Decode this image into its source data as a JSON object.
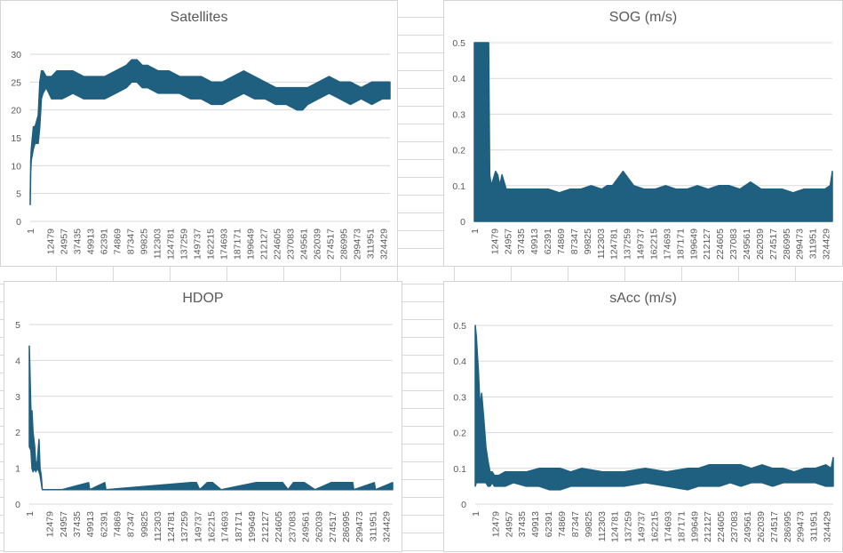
{
  "chart_data": [
    {
      "type": "line",
      "title": "Satellites",
      "xlabel": "",
      "ylabel": "",
      "ylim": [
        0,
        30
      ],
      "yticks": [
        "0",
        "5",
        "10",
        "15",
        "20",
        "25",
        "30"
      ],
      "grid": true,
      "color": "#1f5f7f",
      "categories": [
        "1",
        "12479",
        "24957",
        "37435",
        "49913",
        "62391",
        "74869",
        "87347",
        "99825",
        "112303",
        "124781",
        "137259",
        "149737",
        "162215",
        "174693",
        "187171",
        "199649",
        "212127",
        "224605",
        "237083",
        "249561",
        "262039",
        "274517",
        "286995",
        "299473",
        "311951",
        "324429"
      ],
      "x": [
        1,
        500,
        1000,
        2000,
        3000,
        4500,
        6000,
        7500,
        9000,
        10500,
        12000,
        15000,
        20000,
        25000,
        30000,
        40000,
        50000,
        60000,
        70000,
        80000,
        90000,
        95000,
        100000,
        105000,
        110000,
        120000,
        130000,
        140000,
        150000,
        160000,
        170000,
        180000,
        190000,
        200000,
        210000,
        220000,
        230000,
        240000,
        250000,
        255000,
        260000,
        270000,
        280000,
        290000,
        300000,
        310000,
        320000,
        330000,
        337000
      ],
      "series": [
        {
          "name": "",
          "max": [
            4,
            11,
            13,
            15,
            17,
            17,
            18,
            19,
            25,
            27,
            27,
            26,
            26,
            27,
            27,
            27,
            26,
            26,
            26,
            27,
            28,
            29,
            29,
            28,
            28,
            27,
            27,
            26,
            26,
            26,
            25,
            25,
            26,
            27,
            26,
            25,
            24,
            24,
            24,
            24,
            24,
            25,
            26,
            25,
            25,
            24,
            25,
            25,
            25
          ],
          "min": [
            3,
            9,
            11,
            12,
            13,
            14,
            14,
            14,
            17,
            22,
            23,
            24,
            22,
            22,
            22,
            23,
            22,
            22,
            22,
            23,
            24,
            25,
            25,
            24,
            24,
            23,
            23,
            23,
            22,
            22,
            21,
            21,
            22,
            23,
            22,
            22,
            21,
            21,
            20,
            20,
            21,
            22,
            23,
            22,
            21,
            22,
            21,
            22,
            22
          ]
        }
      ]
    },
    {
      "type": "line",
      "title": "SOG (m/s)",
      "xlabel": "",
      "ylabel": "",
      "ylim": [
        0,
        0.5
      ],
      "yticks": [
        "0",
        "0.1",
        "0.2",
        "0.3",
        "0.4",
        "0.5"
      ],
      "grid": true,
      "color": "#1f5f7f",
      "categories": [
        "1",
        "12479",
        "24957",
        "37435",
        "49913",
        "62391",
        "74869",
        "87347",
        "99825",
        "112303",
        "124781",
        "137259",
        "149737",
        "162215",
        "174693",
        "187171",
        "199649",
        "212127",
        "224605",
        "237083",
        "249561",
        "262039",
        "274517",
        "286995",
        "299473",
        "311951",
        "324429"
      ],
      "x": [
        1,
        13500,
        14500,
        16000,
        18000,
        20000,
        22000,
        24000,
        26000,
        30000,
        40000,
        50000,
        60000,
        70000,
        80000,
        90000,
        100000,
        110000,
        120000,
        125000,
        130000,
        140000,
        150000,
        160000,
        170000,
        180000,
        190000,
        200000,
        210000,
        220000,
        230000,
        240000,
        250000,
        260000,
        270000,
        280000,
        290000,
        300000,
        310000,
        320000,
        330000,
        335000,
        337000
      ],
      "series": [
        {
          "name": "",
          "max": [
            0.5,
            0.5,
            0.13,
            0.1,
            0.12,
            0.14,
            0.13,
            0.1,
            0.13,
            0.09,
            0.09,
            0.09,
            0.09,
            0.09,
            0.08,
            0.09,
            0.09,
            0.1,
            0.09,
            0.1,
            0.1,
            0.14,
            0.1,
            0.09,
            0.09,
            0.1,
            0.09,
            0.09,
            0.1,
            0.09,
            0.1,
            0.1,
            0.09,
            0.11,
            0.09,
            0.09,
            0.09,
            0.08,
            0.09,
            0.09,
            0.09,
            0.1,
            0.14
          ],
          "min": [
            0,
            0,
            0,
            0,
            0,
            0,
            0,
            0,
            0,
            0,
            0,
            0,
            0,
            0,
            0,
            0,
            0,
            0,
            0,
            0,
            0,
            0,
            0,
            0,
            0,
            0,
            0,
            0,
            0,
            0,
            0,
            0,
            0,
            0,
            0,
            0,
            0,
            0,
            0,
            0,
            0,
            0,
            0
          ]
        }
      ]
    },
    {
      "type": "line",
      "title": "HDOP",
      "xlabel": "",
      "ylabel": "",
      "ylim": [
        0,
        5
      ],
      "yticks": [
        "0",
        "1",
        "2",
        "3",
        "4",
        "5"
      ],
      "grid": true,
      "color": "#1f5f7f",
      "categories": [
        "1",
        "12479",
        "24957",
        "37435",
        "49913",
        "62391",
        "74869",
        "87347",
        "99825",
        "112303",
        "124781",
        "137259",
        "149737",
        "162215",
        "174693",
        "187171",
        "199649",
        "212127",
        "224605",
        "237083",
        "249561",
        "262039",
        "274517",
        "286995",
        "299473",
        "311951",
        "324429"
      ],
      "x": [
        1,
        1500,
        2500,
        3500,
        5000,
        6000,
        7500,
        9000,
        10000,
        11000,
        12000,
        13000,
        15000,
        30000,
        55000,
        56000,
        70000,
        71000,
        150000,
        155000,
        158000,
        165000,
        170000,
        178000,
        210000,
        220000,
        235000,
        240000,
        245000,
        255000,
        265000,
        280000,
        300000,
        301000,
        320000,
        321000,
        337000
      ],
      "series": [
        {
          "name": "",
          "max": [
            4.4,
            2.6,
            2.6,
            2.0,
            1.6,
            1.1,
            1.2,
            1.8,
            1.0,
            0.8,
            0.4,
            0.4,
            0.4,
            0.4,
            0.6,
            0.4,
            0.6,
            0.4,
            0.6,
            0.6,
            0.4,
            0.6,
            0.6,
            0.4,
            0.6,
            0.6,
            0.6,
            0.4,
            0.6,
            0.6,
            0.4,
            0.6,
            0.6,
            0.4,
            0.6,
            0.4,
            0.6
          ],
          "min": [
            1.6,
            1.5,
            1.0,
            0.9,
            1.0,
            0.9,
            1.0,
            0.9,
            0.8,
            0.6,
            0.4,
            0.4,
            0.4,
            0.4,
            0.4,
            0.4,
            0.4,
            0.4,
            0.4,
            0.4,
            0.4,
            0.4,
            0.4,
            0.4,
            0.4,
            0.4,
            0.4,
            0.4,
            0.4,
            0.4,
            0.4,
            0.4,
            0.4,
            0.4,
            0.4,
            0.4,
            0.4
          ]
        }
      ]
    },
    {
      "type": "line",
      "title": "sAcc (m/s)",
      "xlabel": "",
      "ylabel": "",
      "ylim": [
        0,
        0.5
      ],
      "yticks": [
        "0",
        "0.1",
        "0.2",
        "0.3",
        "0.4",
        "0.5"
      ],
      "grid": true,
      "color": "#1f5f7f",
      "categories": [
        "1",
        "12479",
        "24957",
        "37435",
        "49913",
        "62391",
        "74869",
        "87347",
        "99825",
        "112303",
        "124781",
        "137259",
        "149737",
        "162215",
        "174693",
        "187171",
        "199649",
        "212127",
        "224605",
        "237083",
        "249561",
        "262039",
        "274517",
        "286995",
        "299473",
        "311951",
        "324429"
      ],
      "x": [
        1,
        1000,
        2000,
        3000,
        4500,
        6000,
        8000,
        10000,
        12000,
        14000,
        16000,
        18000,
        22000,
        28000,
        36000,
        48000,
        60000,
        70000,
        80000,
        90000,
        100000,
        120000,
        140000,
        160000,
        180000,
        200000,
        210000,
        220000,
        230000,
        240000,
        250000,
        260000,
        270000,
        280000,
        290000,
        300000,
        310000,
        320000,
        330000,
        335000,
        337000
      ],
      "series": [
        {
          "name": "",
          "max": [
            0.5,
            0.47,
            0.42,
            0.37,
            0.27,
            0.31,
            0.24,
            0.16,
            0.12,
            0.09,
            0.09,
            0.08,
            0.08,
            0.09,
            0.09,
            0.09,
            0.1,
            0.1,
            0.1,
            0.09,
            0.1,
            0.09,
            0.09,
            0.1,
            0.09,
            0.1,
            0.1,
            0.11,
            0.11,
            0.11,
            0.11,
            0.1,
            0.11,
            0.1,
            0.1,
            0.09,
            0.1,
            0.1,
            0.11,
            0.1,
            0.13
          ],
          "min": [
            0.05,
            0.06,
            0.06,
            0.06,
            0.06,
            0.06,
            0.06,
            0.06,
            0.05,
            0.05,
            0.06,
            0.05,
            0.05,
            0.05,
            0.06,
            0.05,
            0.05,
            0.04,
            0.04,
            0.05,
            0.05,
            0.05,
            0.05,
            0.06,
            0.05,
            0.04,
            0.05,
            0.05,
            0.05,
            0.06,
            0.05,
            0.06,
            0.06,
            0.05,
            0.06,
            0.06,
            0.06,
            0.06,
            0.05,
            0.05,
            0.05
          ]
        }
      ]
    }
  ]
}
